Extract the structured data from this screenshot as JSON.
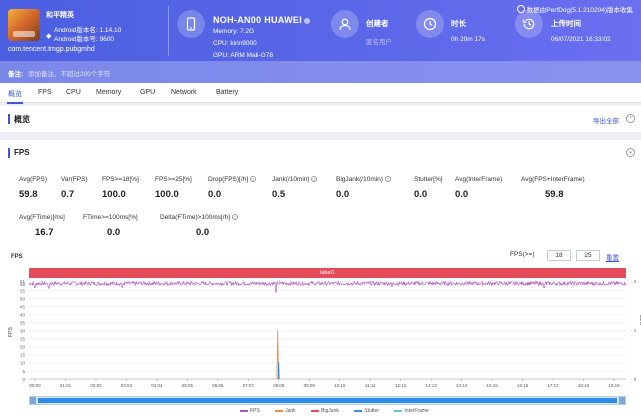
{
  "header": {
    "app_name": "和平精英",
    "android_version": "Android版本名: 1.14.10",
    "android_code": "Android版本号: 9600",
    "package": "com.tencent.tmgp.pubgmhd",
    "device_name": "NOH-AN00 HUAWEI",
    "memory": "Memory: 7.2G",
    "cpu": "CPU: kirin9000",
    "gpu": "GPU: ARM Mali-G78",
    "creator_label": "创建者",
    "creator_value": "匿名用户",
    "duration_label": "时长",
    "duration_value": "0h 20m 17s",
    "upload_label": "上传时间",
    "upload_value": "06/07/2021 16:33:02",
    "version_badge": "数据由PerfDog(5.1.210204)版本收集"
  },
  "remark": {
    "label": "备注:",
    "placeholder": "添加备注，不超过200个字符"
  },
  "tabs": [
    "概览",
    "FPS",
    "CPU",
    "Memory",
    "GPU",
    "Network",
    "Battery"
  ],
  "overview": {
    "title": "概览",
    "export_label": "导出全部"
  },
  "fps_section": {
    "title": "FPS",
    "metrics_row1": [
      {
        "label": "Avg(FPS)",
        "value": "59.8"
      },
      {
        "label": "Var(FPS)",
        "value": "0.7"
      },
      {
        "label": "FPS>=18[%]",
        "value": "100.0"
      },
      {
        "label": "FPS>=25[%]",
        "value": "100.0"
      },
      {
        "label": "Drop(FPS)[/h]",
        "value": "0.0"
      },
      {
        "label": "Jank(/10min)",
        "value": "0.5"
      },
      {
        "label": "BigJank(/10min)",
        "value": "0.0"
      },
      {
        "label": "Stutter[%]",
        "value": "0.0"
      },
      {
        "label": "Avg(InterFrame)",
        "value": "0.0"
      },
      {
        "label": "Avg(FPS+InterFrame)",
        "value": "59.8"
      }
    ],
    "metrics_row2": [
      {
        "label": "Avg(FTime)[ms]",
        "value": "16.7"
      },
      {
        "label": "FTime>=100ms[%]",
        "value": "0.0"
      },
      {
        "label": "Delta(FTime)>100ms[/h]",
        "value": "0.0"
      }
    ],
    "chart_label": "FPS",
    "fps_filter_label": "FPS(>=)",
    "fps_filter_min": "18",
    "fps_filter_max": "25",
    "reset_label": "重置",
    "label_bar": "label1"
  },
  "chart_data": {
    "type": "line",
    "left_axis_label": "FPS",
    "right_axis_label": "Jank",
    "left_ticks": [
      61,
      59,
      55,
      50,
      45,
      40,
      35,
      30,
      25,
      20,
      15,
      10,
      5,
      0
    ],
    "right_ticks": [
      2,
      1,
      0
    ],
    "x_ticks": [
      "00:00",
      "01:01",
      "02:02",
      "03:03",
      "04:04",
      "05:05",
      "06:06",
      "07:07",
      "08:08",
      "09:09",
      "10:10",
      "11:11",
      "12:12",
      "13:13",
      "14:14",
      "15:15",
      "16:16",
      "17:17",
      "18:18",
      "19:19"
    ],
    "ylim": [
      0,
      61
    ],
    "duration_s": 1217,
    "series": [
      {
        "name": "FPS",
        "color": "#b14fc5",
        "baseline": 59.5,
        "dips": [
          {
            "t": 12,
            "v": 57
          },
          {
            "t": 40,
            "v": 56.5
          },
          {
            "t": 190,
            "v": 57
          },
          {
            "t": 503,
            "v": 54
          },
          {
            "t": 740,
            "v": 57.5
          },
          {
            "t": 1050,
            "v": 57
          }
        ]
      },
      {
        "name": "Jank",
        "color": "#f08a3c",
        "spikes": [
          {
            "t": 507,
            "v": 1
          }
        ]
      },
      {
        "name": "BigJank",
        "color": "#e64b59"
      },
      {
        "name": "Stutter",
        "color": "#3a8fe0",
        "spikes": [
          {
            "t": 509,
            "v": 0.35
          }
        ]
      },
      {
        "name": "InterFrame",
        "color": "#5fcbd8"
      }
    ]
  }
}
